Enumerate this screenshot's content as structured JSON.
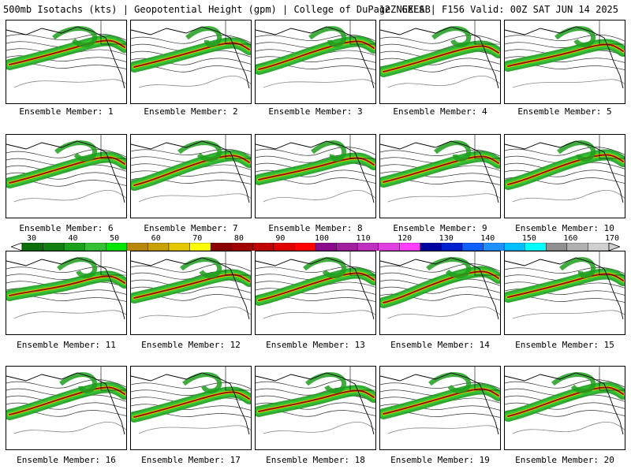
{
  "header": {
    "left": "500mb Isotachs (kts) | Geopotential Height (gpm) | College of DuPage NEXLAB",
    "right": "12Z GEFS | F156 Valid: 00Z SAT JUN 14 2025"
  },
  "members": [
    "Ensemble Member: 1",
    "Ensemble Member: 2",
    "Ensemble Member: 3",
    "Ensemble Member: 4",
    "Ensemble Member: 5",
    "Ensemble Member: 6",
    "Ensemble Member: 7",
    "Ensemble Member: 8",
    "Ensemble Member: 9",
    "Ensemble Member: 10",
    "Ensemble Member: 11",
    "Ensemble Member: 12",
    "Ensemble Member: 13",
    "Ensemble Member: 14",
    "Ensemble Member: 15",
    "Ensemble Member: 16",
    "Ensemble Member: 17",
    "Ensemble Member: 18",
    "Ensemble Member: 19",
    "Ensemble Member: 20"
  ],
  "color_scale": {
    "ticks": [
      "30",
      "40",
      "50",
      "60",
      "70",
      "80",
      "90",
      "100",
      "110",
      "120",
      "130",
      "140",
      "150",
      "160",
      "170"
    ],
    "colors": [
      "#0a6e0a",
      "#127f12",
      "#1aa01a",
      "#34c234",
      "#00e600",
      "#b8860b",
      "#c8a000",
      "#e6c800",
      "#ffff00",
      "#8b0000",
      "#a00000",
      "#c00000",
      "#e00000",
      "#ff0000",
      "#8b0a8b",
      "#a020a0",
      "#c030c0",
      "#e040e0",
      "#ff40ff",
      "#0000a0",
      "#0020d0",
      "#1060ff",
      "#1e90ff",
      "#00bfff",
      "#00ffff",
      "#909090",
      "#b0b0b0",
      "#d0d0d0"
    ]
  },
  "jet_colors": {
    "outer": "#1e9e1e",
    "mid": "#34c834",
    "inner": "#e6c800",
    "core": "#8b0000"
  }
}
